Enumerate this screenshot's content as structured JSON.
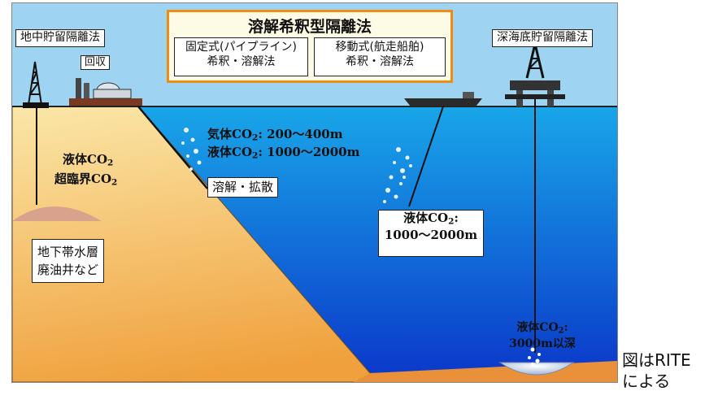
{
  "title_box": {
    "title": "溶解希釈型隔離法",
    "left_method": [
      "固定式(パイプライン)",
      "希釈・溶解法"
    ],
    "right_method": [
      "移動式(航走船舶)",
      "希釈・溶解法"
    ]
  },
  "labels": {
    "underground_storage": "地中貯留隔離法",
    "recovery": "回収",
    "deep_sea_storage": "深海底貯留隔離法",
    "dissolution_diffusion": "溶解・拡散",
    "aquifer": [
      "地下帯水層",
      "廃油井など"
    ]
  },
  "annotations": {
    "gas_co2": {
      "prefix": "気体CO",
      "sub": "2",
      "suffix": ": 200～400m"
    },
    "liquid_co2_pipe": {
      "prefix": "液体CO",
      "sub": "2",
      "suffix": ": 1000～2000m"
    },
    "underground_liquid": {
      "prefix": "液体CO",
      "sub": "2"
    },
    "underground_supercritical": {
      "prefix": "超臨界CO",
      "sub": "2"
    },
    "ship_liquid": {
      "prefix": "液体CO",
      "sub": "2",
      "suffix": ":",
      "depth": "1000～2000m"
    },
    "deep_liquid": {
      "prefix": "液体CO",
      "sub": "2",
      "suffix": ":",
      "depth": "3000m以深"
    }
  },
  "caption": [
    "図はRITE",
    "による"
  ],
  "colors": {
    "sky": "#9ed4f2",
    "sea_top": "#19a6e8",
    "sea_bottom": "#0a36c9",
    "land_top": "#fbe7a8",
    "land_bottom": "#f0a03c",
    "title_border": "#f08c14",
    "reservoir": "#d9a28c"
  }
}
